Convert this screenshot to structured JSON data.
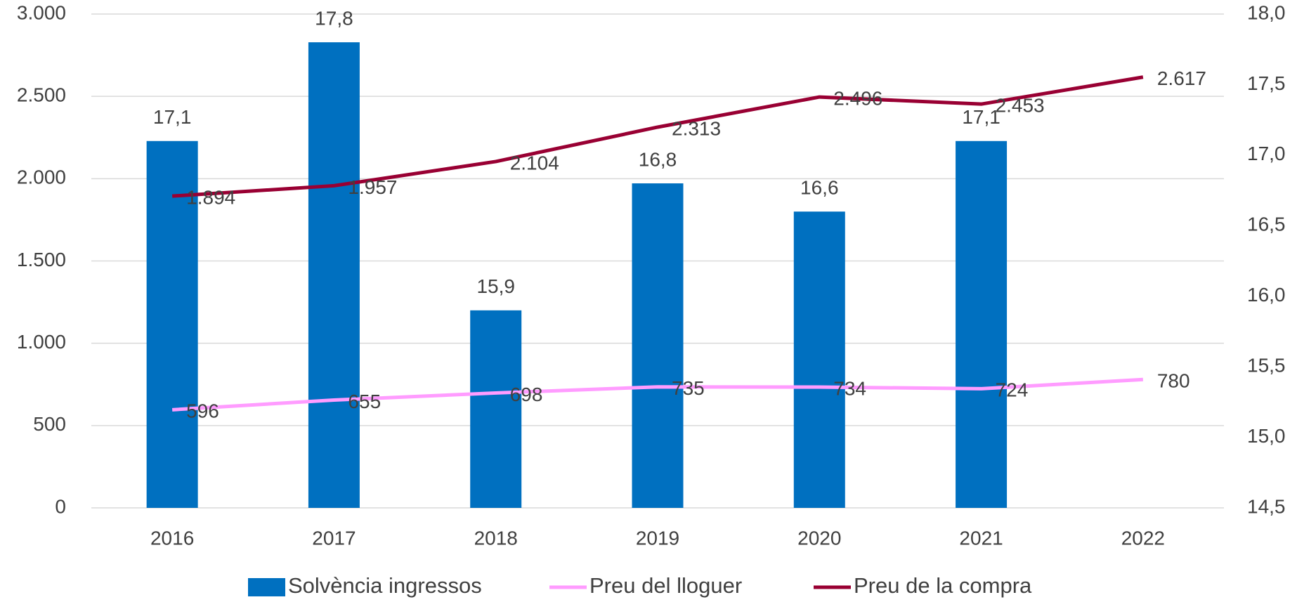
{
  "chart_data": {
    "type": "bar-line",
    "categories": [
      "2016",
      "2017",
      "2018",
      "2019",
      "2020",
      "2021",
      "2022"
    ],
    "series": [
      {
        "name": "Solvència ingressos",
        "type": "bar",
        "axis": "y2",
        "color": "#0070c0",
        "values": [
          17.1,
          17.8,
          15.9,
          16.8,
          16.6,
          17.1,
          null
        ],
        "value_labels": [
          "17,1",
          "17,8",
          "15,9",
          "16,8",
          "16,6",
          "17,1",
          null
        ]
      },
      {
        "name": "Preu del lloguer",
        "type": "line",
        "color": "#ff9cff",
        "values": [
          596,
          655,
          698,
          735,
          734,
          724,
          780
        ]
      },
      {
        "name": "Preu de la compra",
        "type": "line",
        "color": "#990033",
        "values": [
          1894,
          1957,
          2104,
          2313,
          2496,
          2453,
          2617
        ],
        "value_labels": [
          "1.894",
          "1.957",
          "2.104",
          "2.313",
          "2.496",
          "2.453",
          "2.617"
        ]
      }
    ],
    "ylim": [
      0,
      3000
    ],
    "yticks": [
      0,
      {
        "value": 500,
        "label": "500"
      },
      {
        "value": 1000,
        "label": "1.000"
      },
      {
        "value": 1500,
        "label": "1.500"
      },
      {
        "value": 2000,
        "label": "2.000"
      },
      {
        "value": 2500,
        "label": "2.500"
      },
      {
        "value": 3000,
        "label": "3.000"
      }
    ],
    "y2lim": [
      14.5,
      18.0
    ],
    "y2ticks": [
      {
        "value": 14.5,
        "label": "14,5"
      },
      {
        "value": 15,
        "label": "15,0"
      },
      {
        "value": 15.5,
        "label": "15,5"
      },
      {
        "value": 16,
        "label": "16,0"
      },
      {
        "value": 16.5,
        "label": "16,5"
      },
      {
        "value": 17,
        "label": "17,0"
      },
      {
        "value": 17.5,
        "label": "17,5"
      },
      {
        "value": 18,
        "label": "18,0"
      }
    ],
    "grid": true,
    "legend": "bottom"
  }
}
